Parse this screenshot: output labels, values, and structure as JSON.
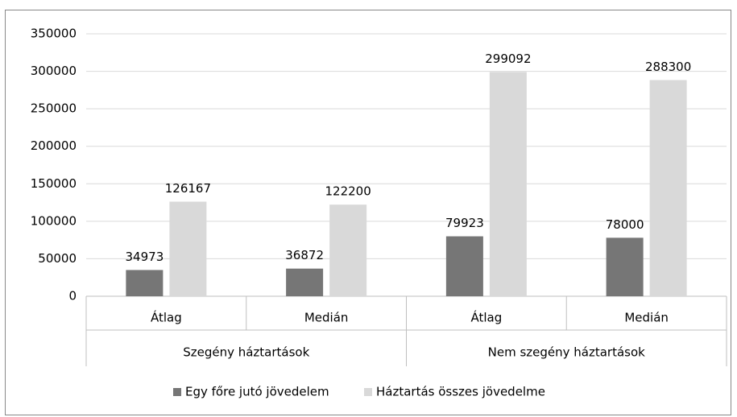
{
  "chart_data": {
    "type": "bar",
    "groups": [
      {
        "name": "Szegény háztartások",
        "categories": [
          "Átlag",
          "Medián"
        ]
      },
      {
        "name": "Nem szegény háztartások",
        "categories": [
          "Átlag",
          "Medián"
        ]
      }
    ],
    "series": [
      {
        "name": "Egy főre jutó jövedelem",
        "color": "#767676",
        "values": [
          34973,
          36872,
          79923,
          78000
        ]
      },
      {
        "name": "Háztartás összes jövedelme",
        "color": "#d9d9d9",
        "values": [
          126167,
          122200,
          299092,
          288300
        ]
      }
    ],
    "ylim": [
      0,
      350000
    ],
    "yticks": [
      0,
      50000,
      100000,
      150000,
      200000,
      250000,
      300000,
      350000
    ],
    "grid": true,
    "legend": "bottom"
  }
}
